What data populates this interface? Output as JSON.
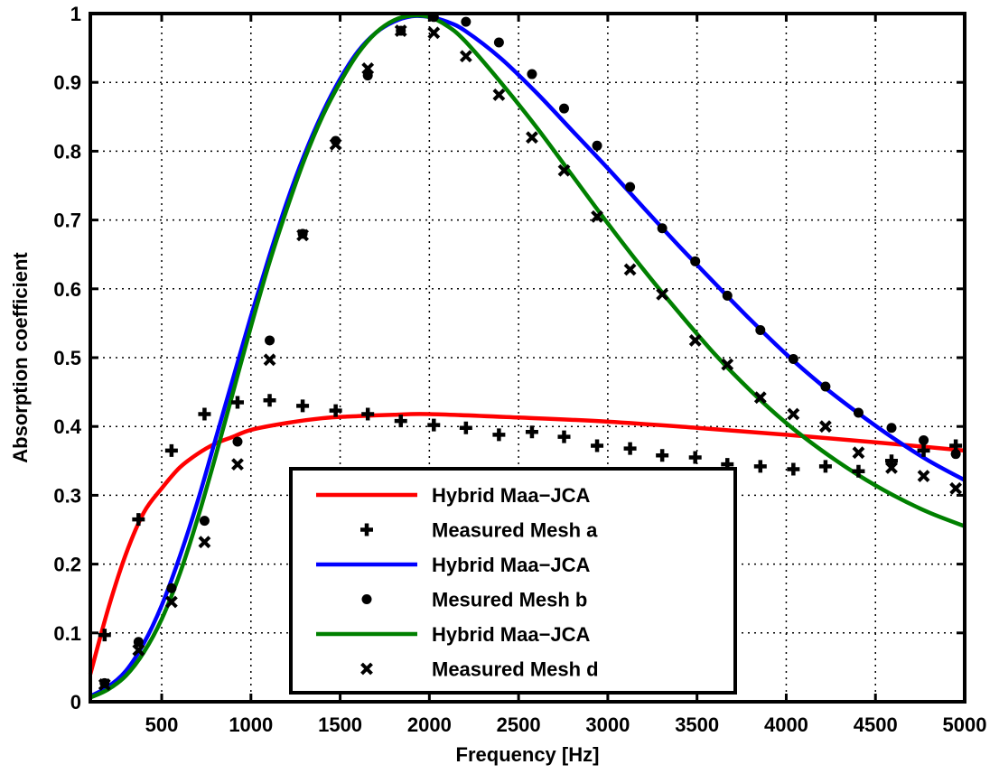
{
  "chart_data": {
    "type": "line",
    "title": "",
    "xlabel": "Frequency [Hz]",
    "ylabel": "Absorption coefficient",
    "xlim": [
      100,
      5000
    ],
    "ylim": [
      0,
      1
    ],
    "x_ticks": [
      500,
      1000,
      1500,
      2000,
      2500,
      3000,
      3500,
      4000,
      4500,
      5000
    ],
    "y_ticks": [
      0,
      0.1,
      0.2,
      0.3,
      0.4,
      0.5,
      0.6,
      0.7,
      0.8,
      0.9,
      1
    ],
    "grid": true,
    "grid_style": "dotted",
    "legend_position": "bottom-center",
    "series": [
      {
        "name": "Hybrid Maa−JCA",
        "kind": "line",
        "color": "#ff0000",
        "x": [
          100,
          200,
          300,
          400,
          500,
          600,
          700,
          800,
          900,
          1000,
          1200,
          1400,
          1600,
          1800,
          2000,
          2500,
          3000,
          3500,
          4000,
          4500,
          5000
        ],
        "y": [
          0.04,
          0.135,
          0.215,
          0.275,
          0.31,
          0.34,
          0.36,
          0.375,
          0.385,
          0.395,
          0.405,
          0.412,
          0.415,
          0.417,
          0.418,
          0.413,
          0.407,
          0.398,
          0.388,
          0.377,
          0.365
        ]
      },
      {
        "name": "Measured Mesh a",
        "kind": "marker",
        "marker": "plus",
        "color": "#000000",
        "x": [
          180,
          370,
          555,
          740,
          925,
          1105,
          1290,
          1475,
          1655,
          1840,
          2025,
          2205,
          2390,
          2575,
          2755,
          2940,
          3125,
          3305,
          3490,
          3670,
          3855,
          4040,
          4220,
          4405,
          4590,
          4770,
          4950
        ],
        "y": [
          0.097,
          0.265,
          0.365,
          0.418,
          0.435,
          0.438,
          0.43,
          0.423,
          0.418,
          0.408,
          0.402,
          0.398,
          0.388,
          0.392,
          0.385,
          0.372,
          0.368,
          0.358,
          0.355,
          0.345,
          0.342,
          0.338,
          0.342,
          0.335,
          0.35,
          0.365,
          0.372
        ]
      },
      {
        "name": "Hybrid Maa−JCA",
        "kind": "line",
        "color": "#0000ff",
        "x": [
          100,
          200,
          300,
          400,
          500,
          600,
          700,
          800,
          900,
          1000,
          1100,
          1200,
          1300,
          1400,
          1500,
          1600,
          1700,
          1800,
          1900,
          2000,
          2100,
          2200,
          2400,
          2600,
          2800,
          3000,
          3200,
          3400,
          3600,
          3800,
          4000,
          4200,
          4400,
          4600,
          4800,
          5000
        ],
        "y": [
          0.008,
          0.022,
          0.045,
          0.085,
          0.14,
          0.21,
          0.29,
          0.38,
          0.47,
          0.56,
          0.645,
          0.725,
          0.795,
          0.855,
          0.905,
          0.945,
          0.972,
          0.988,
          0.996,
          0.995,
          0.988,
          0.975,
          0.935,
          0.885,
          0.83,
          0.775,
          0.718,
          0.662,
          0.608,
          0.555,
          0.505,
          0.46,
          0.42,
          0.383,
          0.35,
          0.322
        ]
      },
      {
        "name": "Mesured Mesh b",
        "kind": "marker",
        "marker": "dot",
        "color": "#000000",
        "x": [
          180,
          370,
          555,
          740,
          925,
          1105,
          1290,
          1475,
          1655,
          1840,
          2025,
          2205,
          2390,
          2575,
          2755,
          2940,
          3125,
          3305,
          3490,
          3670,
          3855,
          4040,
          4220,
          4405,
          4590,
          4770,
          4950
        ],
        "y": [
          0.027,
          0.087,
          0.165,
          0.263,
          0.378,
          0.525,
          0.68,
          0.815,
          0.91,
          0.975,
          0.995,
          0.988,
          0.958,
          0.912,
          0.862,
          0.808,
          0.748,
          0.688,
          0.64,
          0.59,
          0.54,
          0.498,
          0.458,
          0.42,
          0.398,
          0.38,
          0.36
        ]
      },
      {
        "name": "Hybrid Maa−JCA",
        "kind": "line",
        "color": "#008000",
        "x": [
          100,
          200,
          300,
          400,
          500,
          600,
          700,
          800,
          900,
          1000,
          1100,
          1200,
          1300,
          1400,
          1500,
          1600,
          1700,
          1800,
          1900,
          2000,
          2100,
          2200,
          2400,
          2600,
          2800,
          3000,
          3200,
          3400,
          3600,
          3800,
          4000,
          4200,
          4400,
          4600,
          4800,
          5000
        ],
        "y": [
          0.006,
          0.018,
          0.038,
          0.072,
          0.12,
          0.185,
          0.265,
          0.355,
          0.45,
          0.545,
          0.635,
          0.715,
          0.788,
          0.85,
          0.9,
          0.942,
          0.972,
          0.99,
          0.997,
          0.995,
          0.982,
          0.96,
          0.9,
          0.835,
          0.765,
          0.695,
          0.628,
          0.565,
          0.505,
          0.452,
          0.405,
          0.365,
          0.33,
          0.3,
          0.275,
          0.255
        ]
      },
      {
        "name": "Measured Mesh d",
        "kind": "marker",
        "marker": "x",
        "color": "#000000",
        "x": [
          180,
          370,
          555,
          740,
          925,
          1105,
          1290,
          1475,
          1655,
          1840,
          2025,
          2205,
          2390,
          2575,
          2755,
          2940,
          3125,
          3305,
          3490,
          3670,
          3855,
          4040,
          4220,
          4405,
          4590,
          4770,
          4950
        ],
        "y": [
          0.025,
          0.075,
          0.145,
          0.232,
          0.345,
          0.497,
          0.678,
          0.81,
          0.92,
          0.975,
          0.972,
          0.938,
          0.882,
          0.82,
          0.772,
          0.705,
          0.628,
          0.592,
          0.525,
          0.49,
          0.442,
          0.418,
          0.4,
          0.362,
          0.34,
          0.328,
          0.31
        ]
      }
    ]
  }
}
